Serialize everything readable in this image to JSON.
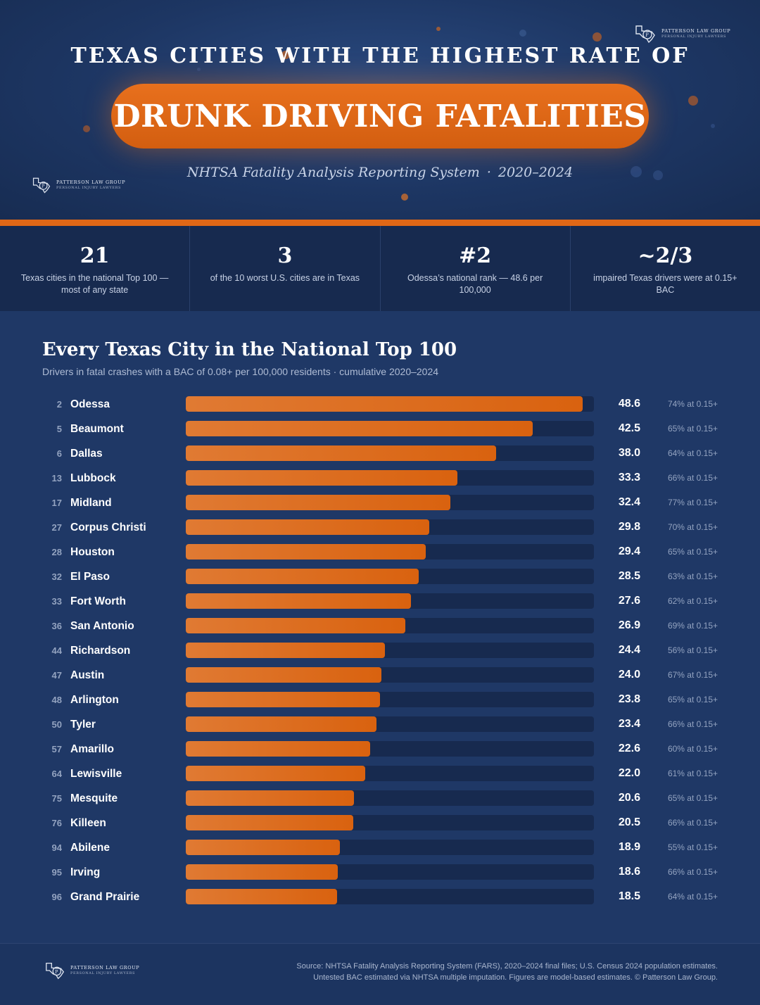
{
  "brand": {
    "name": "PATTERSON LAW GROUP",
    "tagline": "PERSONAL INJURY LAWYERS"
  },
  "header": {
    "title_top": "TEXAS CITIES WITH THE HIGHEST RATE OF",
    "title_main": "DRUNK DRIVING FATALITIES",
    "subtitle_source": "NHTSA Fatality Analysis Reporting System",
    "subtitle_sep": "·",
    "subtitle_years": "2020–2024"
  },
  "stats": [
    {
      "value": "21",
      "label": "Texas cities in the national Top 100 — most of any state"
    },
    {
      "value": "3",
      "label": "of the 10 worst U.S. cities are in Texas"
    },
    {
      "value": "#2",
      "label": "Odessa’s national rank — 48.6 per 100,000"
    },
    {
      "value": "~2/3",
      "label": "impaired Texas drivers were at 0.15+ BAC"
    }
  ],
  "chart_data": {
    "type": "bar",
    "orientation": "horizontal",
    "title": "Every Texas City in the National Top 100",
    "subtitle": "Drivers in fatal crashes with a BAC of 0.08+ per 100,000 residents · cumulative 2020–2024",
    "xlim": [
      0,
      50
    ],
    "rows": [
      {
        "rank": "2",
        "city": "Odessa",
        "value": 48.6,
        "value_label": "48.6",
        "pct_label": "74% at 0.15+"
      },
      {
        "rank": "5",
        "city": "Beaumont",
        "value": 42.5,
        "value_label": "42.5",
        "pct_label": "65% at 0.15+"
      },
      {
        "rank": "6",
        "city": "Dallas",
        "value": 38.0,
        "value_label": "38.0",
        "pct_label": "64% at 0.15+"
      },
      {
        "rank": "13",
        "city": "Lubbock",
        "value": 33.3,
        "value_label": "33.3",
        "pct_label": "66% at 0.15+"
      },
      {
        "rank": "17",
        "city": "Midland",
        "value": 32.4,
        "value_label": "32.4",
        "pct_label": "77% at 0.15+"
      },
      {
        "rank": "27",
        "city": "Corpus Christi",
        "value": 29.8,
        "value_label": "29.8",
        "pct_label": "70% at 0.15+"
      },
      {
        "rank": "28",
        "city": "Houston",
        "value": 29.4,
        "value_label": "29.4",
        "pct_label": "65% at 0.15+"
      },
      {
        "rank": "32",
        "city": "El Paso",
        "value": 28.5,
        "value_label": "28.5",
        "pct_label": "63% at 0.15+"
      },
      {
        "rank": "33",
        "city": "Fort Worth",
        "value": 27.6,
        "value_label": "27.6",
        "pct_label": "62% at 0.15+"
      },
      {
        "rank": "36",
        "city": "San Antonio",
        "value": 26.9,
        "value_label": "26.9",
        "pct_label": "69% at 0.15+"
      },
      {
        "rank": "44",
        "city": "Richardson",
        "value": 24.4,
        "value_label": "24.4",
        "pct_label": "56% at 0.15+"
      },
      {
        "rank": "47",
        "city": "Austin",
        "value": 24.0,
        "value_label": "24.0",
        "pct_label": "67% at 0.15+"
      },
      {
        "rank": "48",
        "city": "Arlington",
        "value": 23.8,
        "value_label": "23.8",
        "pct_label": "65% at 0.15+"
      },
      {
        "rank": "50",
        "city": "Tyler",
        "value": 23.4,
        "value_label": "23.4",
        "pct_label": "66% at 0.15+"
      },
      {
        "rank": "57",
        "city": "Amarillo",
        "value": 22.6,
        "value_label": "22.6",
        "pct_label": "60% at 0.15+"
      },
      {
        "rank": "64",
        "city": "Lewisville",
        "value": 22.0,
        "value_label": "22.0",
        "pct_label": "61% at 0.15+"
      },
      {
        "rank": "75",
        "city": "Mesquite",
        "value": 20.6,
        "value_label": "20.6",
        "pct_label": "65% at 0.15+"
      },
      {
        "rank": "76",
        "city": "Killeen",
        "value": 20.5,
        "value_label": "20.5",
        "pct_label": "66% at 0.15+"
      },
      {
        "rank": "94",
        "city": "Abilene",
        "value": 18.9,
        "value_label": "18.9",
        "pct_label": "55% at 0.15+"
      },
      {
        "rank": "95",
        "city": "Irving",
        "value": 18.6,
        "value_label": "18.6",
        "pct_label": "66% at 0.15+"
      },
      {
        "rank": "96",
        "city": "Grand Prairie",
        "value": 18.5,
        "value_label": "18.5",
        "pct_label": "64% at 0.15+"
      }
    ],
    "colors": {
      "bar": "#d9620f",
      "track": "#172a4f"
    }
  },
  "footer": {
    "source_line1": "Source: NHTSA Fatality Analysis Reporting System (FARS), 2020–2024 final files; U.S. Census 2024 population estimates.",
    "source_line2": "Untested BAC estimated via NHTSA multiple imputation. Figures are model-based estimates. © Patterson Law Group."
  }
}
